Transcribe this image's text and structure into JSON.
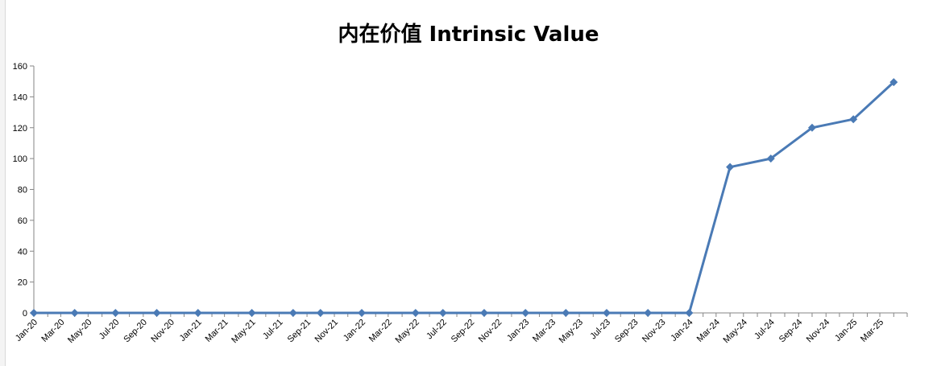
{
  "chart_data": {
    "type": "line",
    "title": "内在价值 Intrinsic Value",
    "xlabel": "",
    "ylabel": "",
    "ylim": [
      0,
      160
    ],
    "yticks": [
      0,
      20,
      40,
      60,
      80,
      100,
      120,
      140,
      160
    ],
    "x_tick_labels": [
      "Jan-20",
      "Mar-20",
      "May-20",
      "Jul-20",
      "Sep-20",
      "Nov-20",
      "Jan-21",
      "Mar-21",
      "May-21",
      "Jul-21",
      "Sep-21",
      "Nov-21",
      "Jan-22",
      "Mar-22",
      "May-22",
      "Jul-22",
      "Sep-22",
      "Nov-22",
      "Jan-23",
      "Mar-23",
      "May-23",
      "Jul-23",
      "Sep-23",
      "Nov-23",
      "Jan-24",
      "Mar-24",
      "May-24",
      "Jul-24",
      "Sep-24",
      "Nov-24",
      "Jan-25",
      "Mar-25"
    ],
    "x_range": [
      "2020-01-01",
      "2025-05-01"
    ],
    "series": [
      {
        "color": "#4a7ab5",
        "marker": "diamond",
        "points": [
          {
            "x": "2020-01-01",
            "y": 0
          },
          {
            "x": "2020-04-01",
            "y": 0
          },
          {
            "x": "2020-07-01",
            "y": 0
          },
          {
            "x": "2020-10-01",
            "y": 0
          },
          {
            "x": "2021-01-01",
            "y": 0
          },
          {
            "x": "2021-05-01",
            "y": 0
          },
          {
            "x": "2021-08-01",
            "y": 0
          },
          {
            "x": "2021-10-01",
            "y": 0
          },
          {
            "x": "2022-01-01",
            "y": 0
          },
          {
            "x": "2022-05-01",
            "y": 0
          },
          {
            "x": "2022-07-01",
            "y": 0
          },
          {
            "x": "2022-10-01",
            "y": 0
          },
          {
            "x": "2023-01-01",
            "y": 0
          },
          {
            "x": "2023-04-01",
            "y": 0
          },
          {
            "x": "2023-07-01",
            "y": 0
          },
          {
            "x": "2023-10-01",
            "y": 0
          },
          {
            "x": "2024-01-01",
            "y": 0
          },
          {
            "x": "2024-04-01",
            "y": 94.5
          },
          {
            "x": "2024-07-01",
            "y": 100
          },
          {
            "x": "2024-10-01",
            "y": 120
          },
          {
            "x": "2025-01-01",
            "y": 125.5
          },
          {
            "x": "2025-04-01",
            "y": 149.5
          }
        ]
      }
    ],
    "grid": false,
    "legend": "none"
  }
}
